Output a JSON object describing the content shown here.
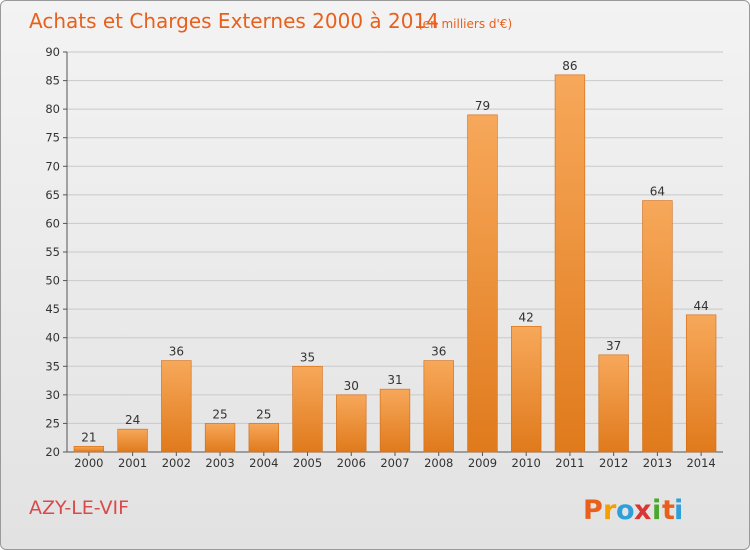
{
  "header": {
    "title": "Achats et Charges Externes 2000 à 2014",
    "unit": "(en milliers d'€)"
  },
  "footer": {
    "place": "AZY-LE-VIF",
    "logo": "Proxiti",
    "logo_letters": [
      "P",
      "r",
      "o",
      "x",
      "i",
      "t",
      "i"
    ],
    "logo_colors": [
      "#e8601c",
      "#f5a000",
      "#2f9fd9",
      "#d93535",
      "#4aa82e",
      "#e8601c",
      "#2f9fd9"
    ]
  },
  "colors": {
    "bar_light": "#f7a85a",
    "bar_dark": "#e07a1c",
    "title": "#e8601c"
  },
  "chart_data": {
    "type": "bar",
    "title": "Achats et Charges Externes 2000 à 2014",
    "subtitle": "(en milliers d'€)",
    "categories": [
      "2000",
      "2001",
      "2002",
      "2003",
      "2004",
      "2005",
      "2006",
      "2007",
      "2008",
      "2009",
      "2010",
      "2011",
      "2012",
      "2013",
      "2014"
    ],
    "values": [
      21,
      24,
      36,
      25,
      25,
      35,
      30,
      31,
      36,
      79,
      42,
      86,
      37,
      64,
      44
    ],
    "ylim": [
      20,
      90
    ],
    "yticks": [
      20,
      25,
      30,
      35,
      40,
      45,
      50,
      55,
      60,
      65,
      70,
      75,
      80,
      85,
      90
    ],
    "grid": true,
    "legend": "none"
  }
}
